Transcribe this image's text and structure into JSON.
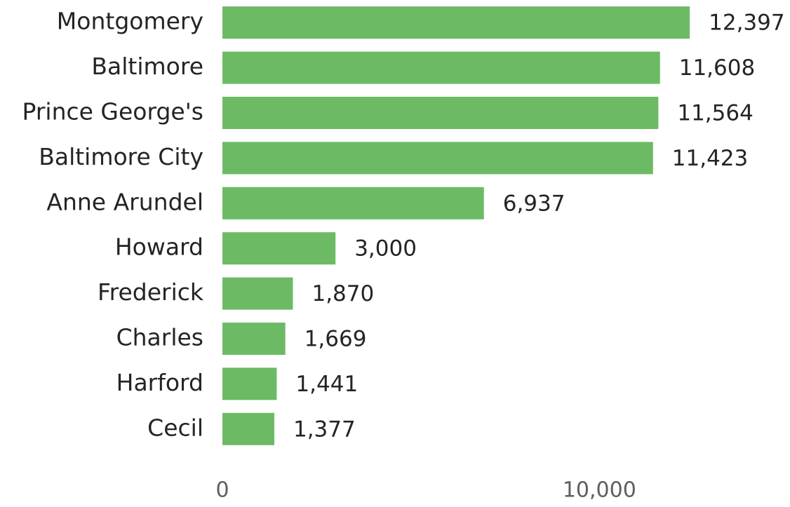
{
  "chart_data": {
    "type": "bar",
    "orientation": "horizontal",
    "categories": [
      "Montgomery",
      "Baltimore",
      "Prince George's",
      "Baltimore City",
      "Anne Arundel",
      "Howard",
      "Frederick",
      "Charles",
      "Harford",
      "Cecil"
    ],
    "values": [
      12397,
      11608,
      11564,
      11423,
      6937,
      3000,
      1870,
      1669,
      1441,
      1377
    ],
    "value_labels": [
      "12,397",
      "11,608",
      "11,564",
      "11,423",
      "6,937",
      "3,000",
      "1,870",
      "1,669",
      "1,441",
      "1,377"
    ],
    "color": "#6cbb64",
    "xlim": [
      0,
      15000
    ],
    "xticks": [
      0,
      {
        "value": 10000,
        "label": "10,000"
      }
    ],
    "grid": false
  }
}
